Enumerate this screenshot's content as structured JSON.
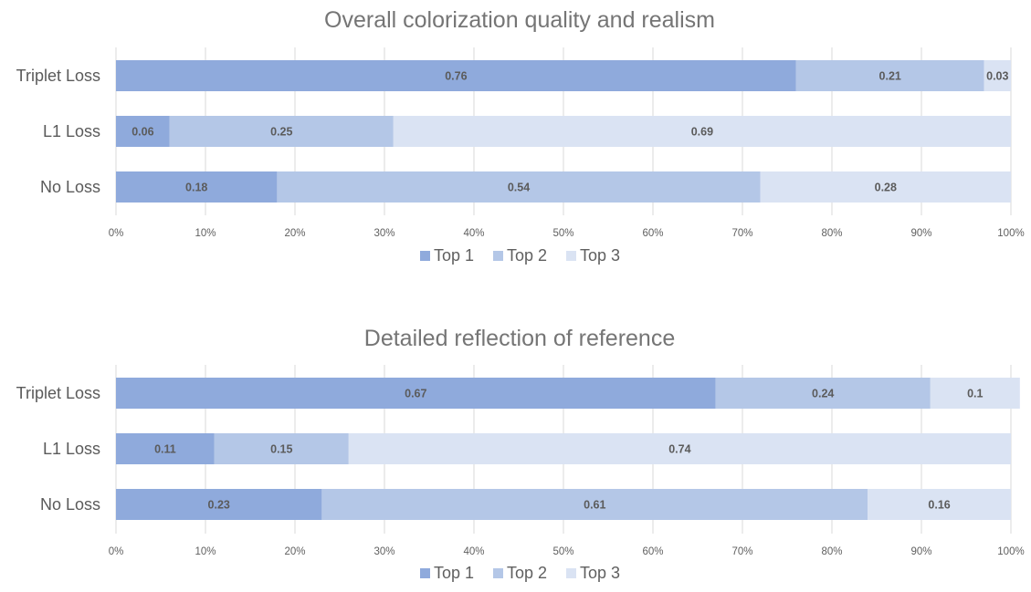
{
  "chart_data": [
    {
      "type": "bar",
      "orientation": "horizontal",
      "stacked": true,
      "title": "Overall colorization quality and realism",
      "categories": [
        "Triplet Loss",
        "L1 Loss",
        "No Loss"
      ],
      "series": [
        {
          "name": "Top 1",
          "color": "#8faadc",
          "values": [
            0.76,
            0.06,
            0.18
          ]
        },
        {
          "name": "Top 2",
          "color": "#b4c7e7",
          "values": [
            0.21,
            0.25,
            0.54
          ]
        },
        {
          "name": "Top 3",
          "color": "#dae3f3",
          "values": [
            0.03,
            0.69,
            0.28
          ]
        }
      ],
      "x_ticks": [
        "0%",
        "10%",
        "20%",
        "30%",
        "40%",
        "50%",
        "60%",
        "70%",
        "80%",
        "90%",
        "100%"
      ],
      "xlim": [
        0,
        1
      ],
      "grid": true,
      "legend_position": "bottom"
    },
    {
      "type": "bar",
      "orientation": "horizontal",
      "stacked": true,
      "title": "Detailed reflection of reference",
      "categories": [
        "Triplet Loss",
        "L1 Loss",
        "No Loss"
      ],
      "series": [
        {
          "name": "Top 1",
          "color": "#8faadc",
          "values": [
            0.67,
            0.11,
            0.23
          ]
        },
        {
          "name": "Top 2",
          "color": "#b4c7e7",
          "values": [
            0.24,
            0.15,
            0.61
          ]
        },
        {
          "name": "Top 3",
          "color": "#dae3f3",
          "values": [
            0.1,
            0.74,
            0.16
          ]
        }
      ],
      "x_ticks": [
        "0%",
        "10%",
        "20%",
        "30%",
        "40%",
        "50%",
        "60%",
        "70%",
        "80%",
        "90%",
        "100%"
      ],
      "xlim": [
        0,
        1
      ],
      "grid": true,
      "legend_position": "bottom"
    }
  ]
}
